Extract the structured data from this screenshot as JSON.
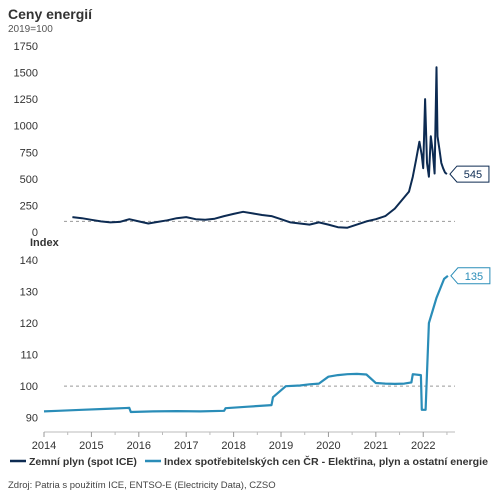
{
  "title": "Ceny energií",
  "subtitle": "2019=100",
  "source": "Zdroj: Patria s použitím ICE, ENTSO-E (Electricity Data), CZSO",
  "colors": {
    "gas": "#0d2b52",
    "cpi": "#2a8db8",
    "ref": "#999999",
    "text": "#333333"
  },
  "chart_data": [
    {
      "type": "line",
      "panel": "top",
      "ylabel": "",
      "ylim": [
        0,
        1750
      ],
      "yticks": [
        0,
        250,
        500,
        750,
        1000,
        1250,
        1500,
        1750
      ],
      "xlim": [
        2014.0,
        2022.67
      ],
      "reference_line": 100,
      "end_label": "545",
      "series": [
        {
          "name": "Zemní plyn (spot ICE)",
          "x": [
            2014.6,
            2014.8,
            2015.0,
            2015.2,
            2015.4,
            2015.6,
            2015.8,
            2016.0,
            2016.2,
            2016.4,
            2016.6,
            2016.8,
            2017.0,
            2017.2,
            2017.4,
            2017.6,
            2017.8,
            2018.0,
            2018.2,
            2018.4,
            2018.6,
            2018.8,
            2019.0,
            2019.2,
            2019.4,
            2019.6,
            2019.8,
            2020.0,
            2020.2,
            2020.4,
            2020.6,
            2020.8,
            2021.0,
            2021.2,
            2021.4,
            2021.55,
            2021.7,
            2021.78,
            2021.85,
            2021.92,
            2021.97,
            2022.0,
            2022.04,
            2022.08,
            2022.12,
            2022.16,
            2022.2,
            2022.24,
            2022.28,
            2022.3,
            2022.34,
            2022.38,
            2022.42,
            2022.46,
            2022.5
          ],
          "y": [
            140,
            130,
            115,
            100,
            90,
            95,
            120,
            100,
            80,
            95,
            110,
            130,
            140,
            120,
            115,
            125,
            150,
            170,
            190,
            175,
            160,
            150,
            120,
            90,
            80,
            70,
            90,
            70,
            45,
            40,
            70,
            100,
            120,
            150,
            220,
            300,
            380,
            520,
            680,
            850,
            720,
            600,
            1250,
            650,
            520,
            900,
            760,
            550,
            1550,
            900,
            780,
            650,
            600,
            560,
            545
          ]
        }
      ]
    },
    {
      "type": "line",
      "panel": "bottom",
      "ylabel": "Index",
      "ylim": [
        88,
        140
      ],
      "yticks": [
        90,
        100,
        110,
        120,
        130,
        140
      ],
      "xlim": [
        2014.0,
        2022.67
      ],
      "xticks": [
        "2014",
        "2015",
        "2016",
        "2017",
        "2018",
        "2019",
        "2020",
        "2021",
        "2022"
      ],
      "reference_line": 100,
      "end_label": "135",
      "series": [
        {
          "name": "Index spotřebitelských cen ČR - Elektřina, plyn a ostatní energie",
          "x": [
            2014.0,
            2014.3,
            2014.8,
            2015.3,
            2015.8,
            2015.83,
            2016.3,
            2016.8,
            2017.3,
            2017.8,
            2017.83,
            2018.3,
            2018.8,
            2018.83,
            2019.1,
            2019.4,
            2019.6,
            2019.8,
            2020.0,
            2020.2,
            2020.4,
            2020.6,
            2020.8,
            2021.0,
            2021.2,
            2021.4,
            2021.6,
            2021.75,
            2021.78,
            2021.95,
            2021.97,
            2022.05,
            2022.12,
            2022.2,
            2022.28,
            2022.36,
            2022.44,
            2022.52
          ],
          "y": [
            92,
            92.2,
            92.5,
            92.8,
            93.1,
            91.8,
            92.0,
            92.1,
            92.0,
            92.2,
            93.0,
            93.5,
            94.0,
            96.5,
            100.0,
            100.2,
            100.6,
            100.8,
            103.0,
            103.5,
            103.8,
            103.9,
            103.7,
            101.0,
            100.8,
            100.7,
            100.8,
            101.2,
            103.8,
            103.5,
            92.5,
            92.5,
            120.0,
            124.0,
            128.0,
            131.0,
            134.0,
            135.0
          ]
        }
      ]
    }
  ]
}
